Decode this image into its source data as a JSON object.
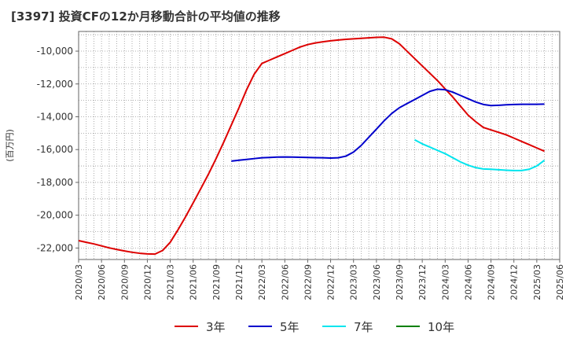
{
  "chart_data": {
    "type": "line",
    "title": "[3397]  投資CFの12か月移動合計の平均値の推移",
    "ylabel": "(百万円)",
    "xlabel": "",
    "ylim": [
      -22700,
      -8800
    ],
    "y_ticks": [
      "-10,000",
      "-12,000",
      "-14,000",
      "-16,000",
      "-18,000",
      "-20,000",
      "-22,000"
    ],
    "y_tick_values": [
      -10000,
      -12000,
      -14000,
      -16000,
      -18000,
      -20000,
      -22000
    ],
    "x_ticks": [
      "2020/03",
      "2020/06",
      "2020/09",
      "2020/12",
      "2021/03",
      "2021/06",
      "2021/09",
      "2021/12",
      "2022/03",
      "2022/06",
      "2022/09",
      "2022/12",
      "2023/03",
      "2023/06",
      "2023/09",
      "2023/12",
      "2024/03",
      "2024/06",
      "2024/09",
      "2024/12",
      "2025/03",
      "2025/06"
    ],
    "x_range": [
      "2020/03",
      "2025/06"
    ],
    "grid": true,
    "legend_position": "bottom",
    "series": [
      {
        "name": "3年",
        "color": "#dd0000",
        "points": [
          [
            "2020/03",
            -21550
          ],
          [
            "2020/04",
            -21650
          ],
          [
            "2020/05",
            -21750
          ],
          [
            "2020/06",
            -21870
          ],
          [
            "2020/07",
            -21990
          ],
          [
            "2020/08",
            -22090
          ],
          [
            "2020/09",
            -22180
          ],
          [
            "2020/10",
            -22260
          ],
          [
            "2020/11",
            -22320
          ],
          [
            "2020/12",
            -22360
          ],
          [
            "2021/01",
            -22370
          ],
          [
            "2021/02",
            -22150
          ],
          [
            "2021/03",
            -21650
          ],
          [
            "2021/04",
            -20900
          ],
          [
            "2021/05",
            -20100
          ],
          [
            "2021/06",
            -19250
          ],
          [
            "2021/07",
            -18380
          ],
          [
            "2021/08",
            -17500
          ],
          [
            "2021/09",
            -16550
          ],
          [
            "2021/10",
            -15550
          ],
          [
            "2021/11",
            -14500
          ],
          [
            "2021/12",
            -13450
          ],
          [
            "2022/01",
            -12350
          ],
          [
            "2022/02",
            -11400
          ],
          [
            "2022/03",
            -10750
          ],
          [
            "2022/04",
            -10550
          ],
          [
            "2022/05",
            -10350
          ],
          [
            "2022/06",
            -10150
          ],
          [
            "2022/07",
            -9950
          ],
          [
            "2022/08",
            -9750
          ],
          [
            "2022/09",
            -9600
          ],
          [
            "2022/10",
            -9500
          ],
          [
            "2022/11",
            -9430
          ],
          [
            "2022/12",
            -9370
          ],
          [
            "2023/01",
            -9320
          ],
          [
            "2023/02",
            -9280
          ],
          [
            "2023/03",
            -9250
          ],
          [
            "2023/04",
            -9220
          ],
          [
            "2023/05",
            -9190
          ],
          [
            "2023/06",
            -9160
          ],
          [
            "2023/07",
            -9150
          ],
          [
            "2023/08",
            -9250
          ],
          [
            "2023/09",
            -9550
          ],
          [
            "2023/10",
            -10000
          ],
          [
            "2023/11",
            -10450
          ],
          [
            "2023/12",
            -10900
          ],
          [
            "2024/01",
            -11350
          ],
          [
            "2024/02",
            -11800
          ],
          [
            "2024/03",
            -12300
          ],
          [
            "2024/04",
            -12800
          ],
          [
            "2024/05",
            -13350
          ],
          [
            "2024/06",
            -13900
          ],
          [
            "2024/07",
            -14300
          ],
          [
            "2024/08",
            -14650
          ],
          [
            "2024/09",
            -14800
          ],
          [
            "2024/10",
            -14950
          ],
          [
            "2024/11",
            -15100
          ],
          [
            "2024/12",
            -15300
          ],
          [
            "2025/01",
            -15500
          ],
          [
            "2025/02",
            -15700
          ],
          [
            "2025/03",
            -15900
          ],
          [
            "2025/04",
            -16100
          ]
        ]
      },
      {
        "name": "5年",
        "color": "#0000cc",
        "points": [
          [
            "2021/11",
            -16700
          ],
          [
            "2021/12",
            -16650
          ],
          [
            "2022/01",
            -16600
          ],
          [
            "2022/02",
            -16550
          ],
          [
            "2022/03",
            -16500
          ],
          [
            "2022/04",
            -16480
          ],
          [
            "2022/05",
            -16460
          ],
          [
            "2022/06",
            -16450
          ],
          [
            "2022/07",
            -16460
          ],
          [
            "2022/08",
            -16470
          ],
          [
            "2022/09",
            -16480
          ],
          [
            "2022/10",
            -16490
          ],
          [
            "2022/11",
            -16500
          ],
          [
            "2022/12",
            -16520
          ],
          [
            "2023/01",
            -16500
          ],
          [
            "2023/02",
            -16400
          ],
          [
            "2023/03",
            -16150
          ],
          [
            "2023/04",
            -15750
          ],
          [
            "2023/05",
            -15250
          ],
          [
            "2023/06",
            -14750
          ],
          [
            "2023/07",
            -14250
          ],
          [
            "2023/08",
            -13800
          ],
          [
            "2023/09",
            -13450
          ],
          [
            "2023/10",
            -13200
          ],
          [
            "2023/11",
            -12950
          ],
          [
            "2023/12",
            -12700
          ],
          [
            "2024/01",
            -12450
          ],
          [
            "2024/02",
            -12320
          ],
          [
            "2024/03",
            -12350
          ],
          [
            "2024/04",
            -12500
          ],
          [
            "2024/05",
            -12700
          ],
          [
            "2024/06",
            -12900
          ],
          [
            "2024/07",
            -13100
          ],
          [
            "2024/08",
            -13250
          ],
          [
            "2024/09",
            -13320
          ],
          [
            "2024/10",
            -13300
          ],
          [
            "2024/11",
            -13270
          ],
          [
            "2024/12",
            -13250
          ],
          [
            "2025/01",
            -13240
          ],
          [
            "2025/02",
            -13240
          ],
          [
            "2025/03",
            -13240
          ],
          [
            "2025/04",
            -13230
          ]
        ]
      },
      {
        "name": "7年",
        "color": "#00e5ee",
        "points": [
          [
            "2023/11",
            -15400
          ],
          [
            "2023/12",
            -15650
          ],
          [
            "2024/01",
            -15850
          ],
          [
            "2024/02",
            -16050
          ],
          [
            "2024/03",
            -16250
          ],
          [
            "2024/04",
            -16500
          ],
          [
            "2024/05",
            -16750
          ],
          [
            "2024/06",
            -16950
          ],
          [
            "2024/07",
            -17100
          ],
          [
            "2024/08",
            -17180
          ],
          [
            "2024/09",
            -17200
          ],
          [
            "2024/10",
            -17230
          ],
          [
            "2024/11",
            -17260
          ],
          [
            "2024/12",
            -17280
          ],
          [
            "2025/01",
            -17280
          ],
          [
            "2025/02",
            -17200
          ],
          [
            "2025/03",
            -17000
          ],
          [
            "2025/04",
            -16650
          ]
        ]
      },
      {
        "name": "10年",
        "color": "#008000",
        "points": []
      }
    ]
  }
}
